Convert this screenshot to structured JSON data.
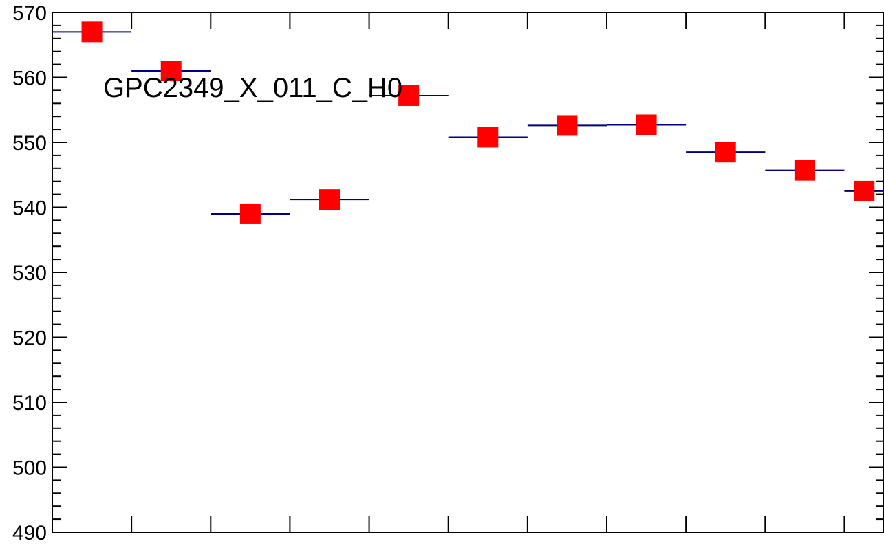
{
  "chart_data": {
    "type": "scatter",
    "title": "GPC2349_X_011_C_H0",
    "xlabel": "",
    "ylabel": "",
    "ylim": [
      490,
      570
    ],
    "xlim": [
      0,
      10.5
    ],
    "y_ticks": [
      "490",
      "500",
      "510",
      "520",
      "530",
      "540",
      "550",
      "560",
      "570"
    ],
    "grid": false,
    "legend": "none",
    "series": [
      {
        "marker_color": "#ff0000",
        "bar_color": "#00007f",
        "points": [
          {
            "x0": 0,
            "x1": 1,
            "y": 567.0
          },
          {
            "x0": 1,
            "x1": 2,
            "y": 561.0
          },
          {
            "x0": 2,
            "x1": 3,
            "y": 539.0
          },
          {
            "x0": 3,
            "x1": 4,
            "y": 541.2
          },
          {
            "x0": 4,
            "x1": 5,
            "y": 557.2
          },
          {
            "x0": 5,
            "x1": 6,
            "y": 550.8
          },
          {
            "x0": 6,
            "x1": 7,
            "y": 552.6
          },
          {
            "x0": 7,
            "x1": 8,
            "y": 552.7
          },
          {
            "x0": 8,
            "x1": 9,
            "y": 548.5
          },
          {
            "x0": 9,
            "x1": 10,
            "y": 545.7
          },
          {
            "x0": 10,
            "x1": 10.5,
            "y": 542.5
          }
        ]
      }
    ]
  }
}
